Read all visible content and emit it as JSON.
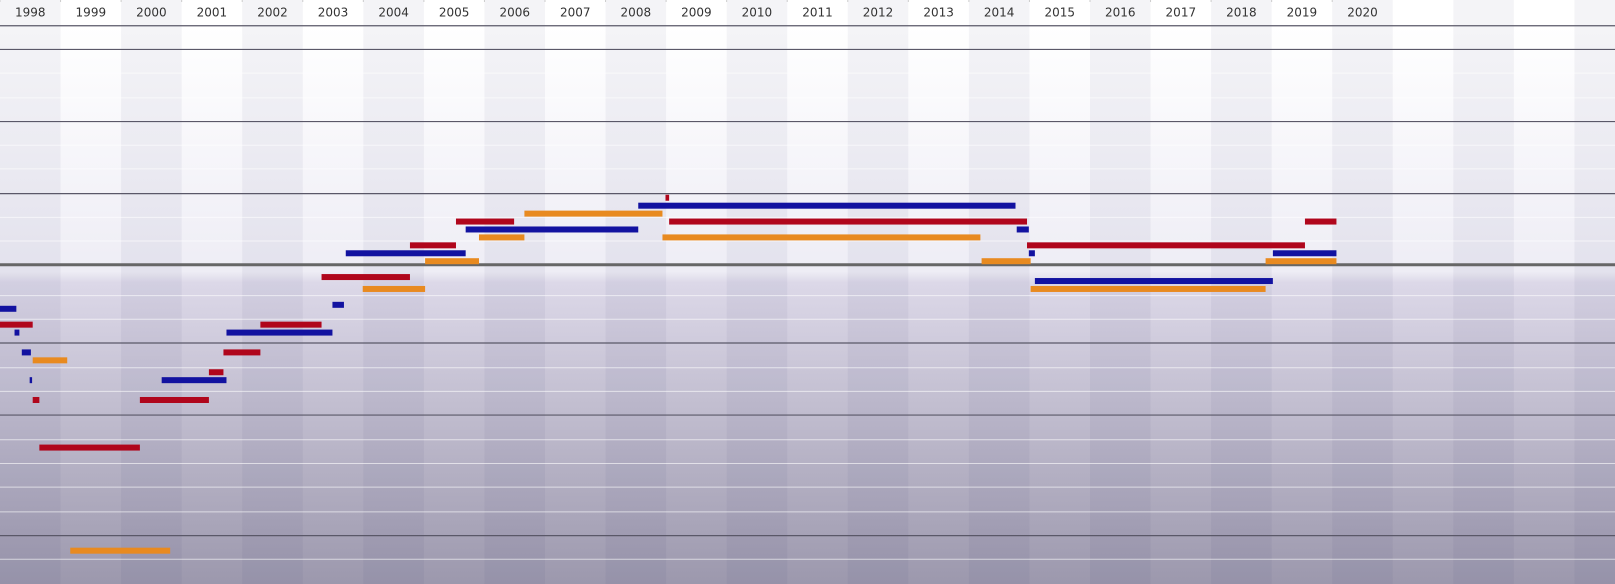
{
  "chart_data": {
    "type": "timeline",
    "xlim": [
      1998,
      2024.67
    ],
    "xticks": [
      1998,
      1999,
      2000,
      2001,
      2002,
      2003,
      2004,
      2005,
      2006,
      2007,
      2008,
      2009,
      2010,
      2011,
      2012,
      2013,
      2014,
      2015,
      2016,
      2017,
      2018,
      2019,
      2020
    ],
    "colors": {
      "red": "#b0061c",
      "blue": "#1212a0",
      "orange": "#e88a20"
    },
    "bars": [
      {
        "start": 2008.99,
        "end": 2009.05,
        "color": "red",
        "row": 0
      },
      {
        "start": 2008.54,
        "end": 2014.77,
        "color": "blue",
        "row": 2
      },
      {
        "start": 2006.66,
        "end": 2008.94,
        "color": "orange",
        "row": 4
      },
      {
        "start": 2005.53,
        "end": 2006.49,
        "color": "red",
        "row": 6
      },
      {
        "start": 2009.05,
        "end": 2014.96,
        "color": "red",
        "row": 6
      },
      {
        "start": 2019.55,
        "end": 2020.07,
        "color": "red",
        "row": 6
      },
      {
        "start": 2005.69,
        "end": 2008.54,
        "color": "blue",
        "row": 8
      },
      {
        "start": 2014.79,
        "end": 2014.99,
        "color": "blue",
        "row": 8
      },
      {
        "start": 2005.91,
        "end": 2006.66,
        "color": "orange",
        "row": 10
      },
      {
        "start": 2008.94,
        "end": 2014.19,
        "color": "orange",
        "row": 10
      },
      {
        "start": 2004.77,
        "end": 2005.53,
        "color": "red",
        "row": 12
      },
      {
        "start": 2014.96,
        "end": 2019.55,
        "color": "red",
        "row": 12
      },
      {
        "start": 2003.71,
        "end": 2005.69,
        "color": "blue",
        "row": 14
      },
      {
        "start": 2014.99,
        "end": 2015.09,
        "color": "blue",
        "row": 14
      },
      {
        "start": 2019.02,
        "end": 2020.07,
        "color": "blue",
        "row": 14
      },
      {
        "start": 2005.02,
        "end": 2005.91,
        "color": "orange",
        "row": 16
      },
      {
        "start": 2014.21,
        "end": 2015.02,
        "color": "orange",
        "row": 16
      },
      {
        "start": 2018.9,
        "end": 2020.07,
        "color": "orange",
        "row": 16
      },
      {
        "start": 2003.31,
        "end": 2004.77,
        "color": "red",
        "row": 20
      },
      {
        "start": 2015.09,
        "end": 2019.02,
        "color": "blue",
        "row": 21
      },
      {
        "start": 2003.99,
        "end": 2005.02,
        "color": "orange",
        "row": 23
      },
      {
        "start": 2015.02,
        "end": 2018.9,
        "color": "orange",
        "row": 23
      },
      {
        "start": 2003.49,
        "end": 2003.68,
        "color": "blue",
        "row": 27
      },
      {
        "start": 1998,
        "end": 1998.27,
        "color": "blue",
        "row": 28
      },
      {
        "start": 2002.3,
        "end": 2003.31,
        "color": "red",
        "row": 32
      },
      {
        "start": 1998,
        "end": 1998.54,
        "color": "red",
        "row": 32
      },
      {
        "start": 2001.74,
        "end": 2003.49,
        "color": "blue",
        "row": 34
      },
      {
        "start": 1998.24,
        "end": 1998.32,
        "color": "blue",
        "row": 34
      },
      {
        "start": 2001.69,
        "end": 2002.3,
        "color": "red",
        "row": 39
      },
      {
        "start": 1998.36,
        "end": 1998.51,
        "color": "blue",
        "row": 39
      },
      {
        "start": 1998.54,
        "end": 1999.11,
        "color": "orange",
        "row": 41
      },
      {
        "start": 2001.45,
        "end": 2001.69,
        "color": "red",
        "row": 44
      },
      {
        "start": 1998.49,
        "end": 1998.53,
        "color": "blue",
        "row": 46
      },
      {
        "start": 2000.67,
        "end": 2001.74,
        "color": "blue",
        "row": 46
      },
      {
        "start": 1998.54,
        "end": 1998.65,
        "color": "red",
        "row": 51
      },
      {
        "start": 2000.31,
        "end": 2001.45,
        "color": "red",
        "row": 51
      },
      {
        "start": 1998.65,
        "end": 2000.31,
        "color": "red",
        "row": 63
      },
      {
        "start": 1999.16,
        "end": 2000.81,
        "color": "orange",
        "row": 89
      }
    ]
  }
}
